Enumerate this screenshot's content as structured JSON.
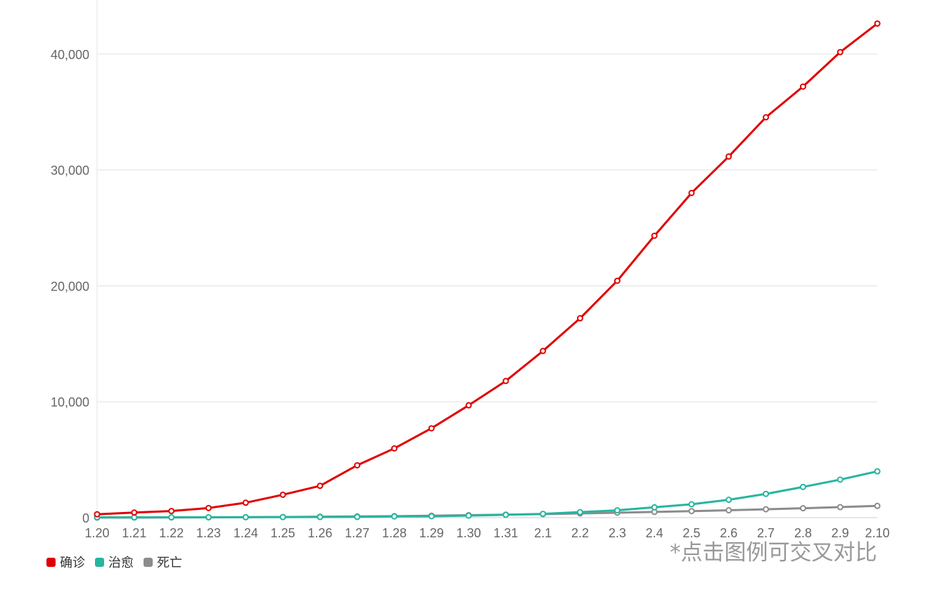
{
  "chart_data": {
    "type": "line",
    "categories": [
      "1.20",
      "1.21",
      "1.22",
      "1.23",
      "1.24",
      "1.25",
      "1.26",
      "1.27",
      "1.28",
      "1.29",
      "1.30",
      "1.31",
      "2.1",
      "2.2",
      "2.3",
      "2.4",
      "2.5",
      "2.6",
      "2.7",
      "2.8",
      "2.9",
      "2.10"
    ],
    "series": [
      {
        "name": "确诊",
        "color": "#e00000",
        "values": [
          291,
          440,
          571,
          830,
          1287,
          1975,
          2744,
          4515,
          5974,
          7711,
          9692,
          11791,
          14380,
          17205,
          20438,
          24324,
          28018,
          31161,
          34546,
          37198,
          40171,
          42638
        ]
      },
      {
        "name": "治愈",
        "color": "#26b5a0",
        "values": [
          25,
          25,
          28,
          34,
          38,
          49,
          51,
          60,
          103,
          124,
          171,
          243,
          328,
          475,
          632,
          892,
          1153,
          1540,
          2050,
          2649,
          3281,
          3996
        ]
      },
      {
        "name": "死亡",
        "color": "#8c8c8c",
        "values": [
          6,
          9,
          17,
          25,
          41,
          56,
          80,
          106,
          132,
          170,
          213,
          259,
          304,
          361,
          425,
          490,
          563,
          636,
          722,
          811,
          908,
          1016
        ]
      }
    ],
    "yticks": [
      "0",
      "10,000",
      "20,000",
      "30,000",
      "40,000"
    ],
    "ytick_values": [
      0,
      10000,
      20000,
      30000,
      40000
    ],
    "ylim": [
      0,
      44000
    ],
    "grid": true,
    "legend_position": "bottom-left"
  },
  "note": "*点击图例可交叉对比"
}
